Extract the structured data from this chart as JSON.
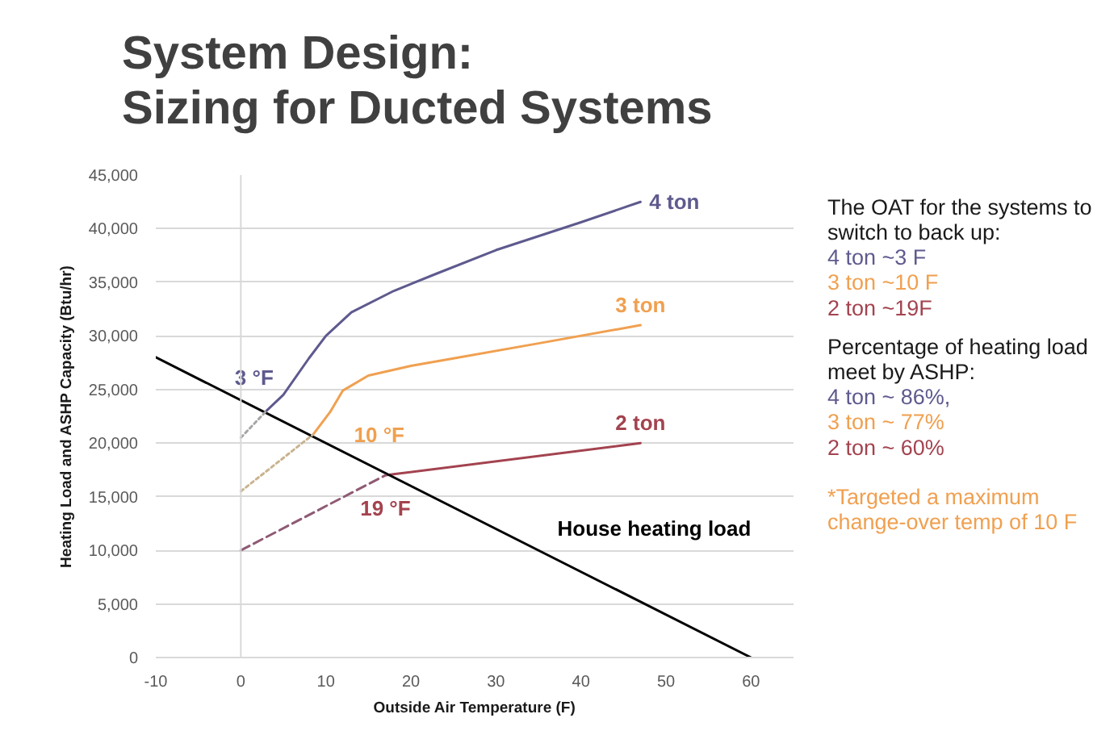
{
  "chart_data": {
    "type": "line",
    "title": "System Design:\nSizing for Ducted Systems",
    "xlabel": "Outside Air Temperature (F)",
    "ylabel": "Heating Load and ASHP Capacity (Btu/hr)",
    "xlim": [
      -10,
      65
    ],
    "ylim": [
      0,
      45000
    ],
    "xticks": [
      -10,
      0,
      10,
      20,
      30,
      40,
      50,
      60
    ],
    "yticks": [
      0,
      {
        "value": 5000,
        "label": "5,000"
      },
      {
        "value": 10000,
        "label": "10,000"
      },
      {
        "value": 15000,
        "label": "15,000"
      },
      {
        "value": 20000,
        "label": "20,000"
      },
      {
        "value": 25000,
        "label": "25,000"
      },
      {
        "value": 30000,
        "label": "30,000"
      },
      {
        "value": 35000,
        "label": "35,000"
      },
      {
        "value": 40000,
        "label": "40,000"
      },
      {
        "value": 45000,
        "label": "45,000"
      }
    ],
    "grid": "y",
    "marker": "none",
    "line_style": "solid",
    "series": [
      {
        "name": "4 ton",
        "color": "#5e5a8e",
        "x": [
          3,
          5,
          8,
          10,
          13,
          18,
          23,
          30,
          40,
          47
        ],
        "values": [
          23000,
          24500,
          27900,
          30000,
          32200,
          34200,
          35800,
          38000,
          40600,
          42500
        ]
      },
      {
        "name": "3 ton",
        "color": "#f0a050",
        "x": [
          8.5,
          10.5,
          12,
          15,
          20,
          25,
          35,
          47
        ],
        "values": [
          20800,
          22900,
          24900,
          26300,
          27200,
          27900,
          29300,
          31000
        ]
      },
      {
        "name": "2 ton",
        "color": "#a3434f",
        "x": [
          17,
          47
        ],
        "values": [
          17000,
          20000
        ]
      },
      {
        "name": "House heating load",
        "color": "#000000",
        "x": [
          -10,
          60
        ],
        "values": [
          28000,
          0
        ]
      },
      {
        "color": "#a6a6a6",
        "x": [
          0,
          3
        ],
        "values": [
          20500,
          23000
        ],
        "line_style": "dotted"
      },
      {
        "color": "#c9b38f",
        "x": [
          0,
          8.5
        ],
        "values": [
          15500,
          20800
        ],
        "line_style": "dotted"
      },
      {
        "color": "#8f5a73",
        "x": [
          0,
          17
        ],
        "values": [
          10000,
          17000
        ],
        "line_style": "dashed"
      }
    ],
    "ref_lines": [
      {
        "axis": "x",
        "value": 0,
        "color": "#d9d9d9"
      }
    ],
    "annotations": [
      {
        "text": "3 °F",
        "x": 3,
        "y": 23000
      },
      {
        "text": "10 °F",
        "x": 8.5,
        "y": 20800
      },
      {
        "text": "19 °F",
        "x": 17,
        "y": 17000
      },
      "The OAT for the systems to switch to back up:",
      "4 ton ~3 F",
      "3 ton ~10 F",
      "2 ton ~19F",
      "Percentage of heating load meet by ASHP:",
      "4 ton ~ 86%,",
      "3 ton ~ 77%",
      "2 ton ~ 60%",
      "*Targeted a maximum change-over temp of 10 F"
    ]
  }
}
